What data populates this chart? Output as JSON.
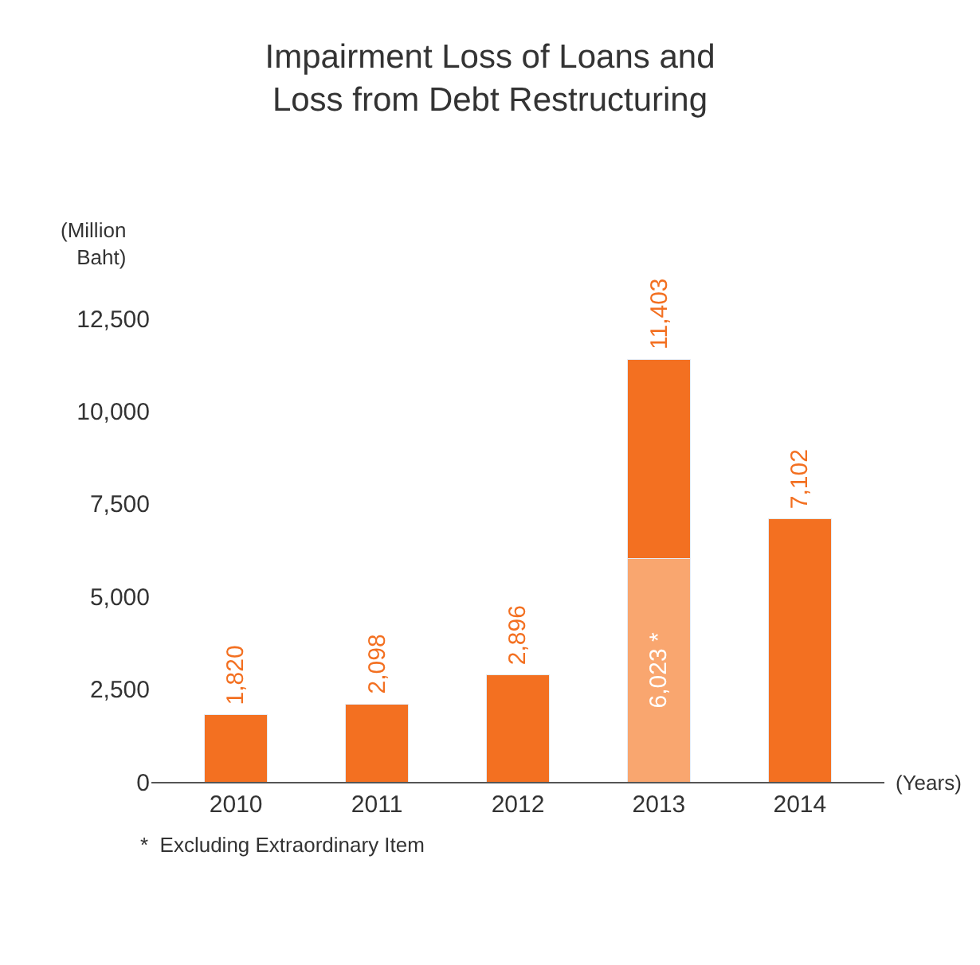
{
  "chart_data": {
    "type": "bar",
    "title": "Impairment Loss of Loans and Loss from Debt Restructuring",
    "ylabel": "(Million Baht)",
    "xlabel": "(Years)",
    "categories": [
      "2010",
      "2011",
      "2012",
      "2013",
      "2014"
    ],
    "stacked": true,
    "series": [
      {
        "color": "#f9a66f",
        "values": [
          null,
          null,
          null,
          6023,
          null
        ],
        "value_labels": [
          null,
          null,
          null,
          "6,023 *",
          null
        ]
      },
      {
        "color": "#f37021",
        "values": [
          1820,
          2098,
          2896,
          5380,
          7102
        ]
      }
    ],
    "totals": [
      "1,820",
      "2,098",
      "2,896",
      "11,403",
      "7,102"
    ],
    "ylim": [
      0,
      12500
    ],
    "yticks": [
      0,
      {
        "value": 2500,
        "label": "2,500"
      },
      {
        "value": 5000,
        "label": "5,000"
      },
      {
        "value": 7500,
        "label": "7,500"
      },
      {
        "value": 10000,
        "label": "10,000"
      },
      {
        "value": 12500,
        "label": "12,500"
      }
    ],
    "annotations": [
      "*  Excluding Extraordinary Item"
    ]
  }
}
